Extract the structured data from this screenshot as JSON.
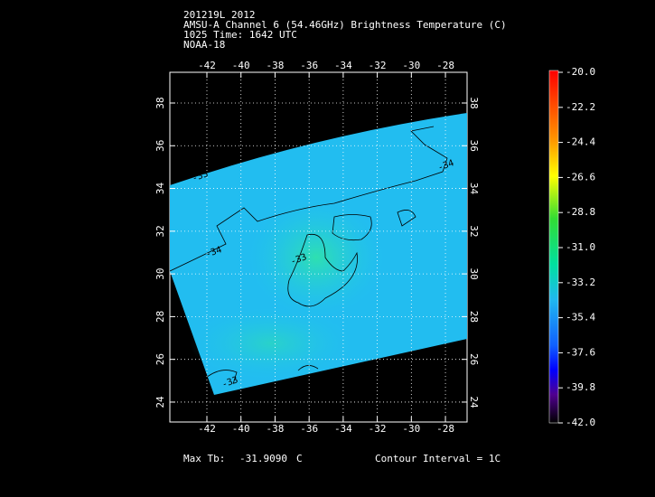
{
  "header": {
    "lines": [
      "201219L 2012",
      "AMSU-A Channel 6 (54.46GHz) Brightness Temperature (C)",
      "1025 Time: 1642 UTC",
      "NOAA-18"
    ]
  },
  "map": {
    "lon_ticks": [
      -42,
      -40,
      -38,
      -36,
      -34,
      -32,
      -30,
      -28
    ],
    "lat_ticks": [
      38,
      36,
      34,
      32,
      30,
      28,
      26,
      24
    ],
    "contour_labels": [
      "-34",
      "-33",
      "-34",
      "-33",
      "-33"
    ]
  },
  "colorbar": {
    "labels": [
      "-20.0",
      "-22.2",
      "-24.4",
      "-26.6",
      "-28.8",
      "-31.0",
      "-33.2",
      "-35.4",
      "-37.6",
      "-39.8",
      "-42.0"
    ]
  },
  "footer": {
    "max_label": "Max Tb:",
    "max_value": "-31.9090",
    "unit": "C",
    "contour_interval": "Contour Interval = 1C"
  }
}
